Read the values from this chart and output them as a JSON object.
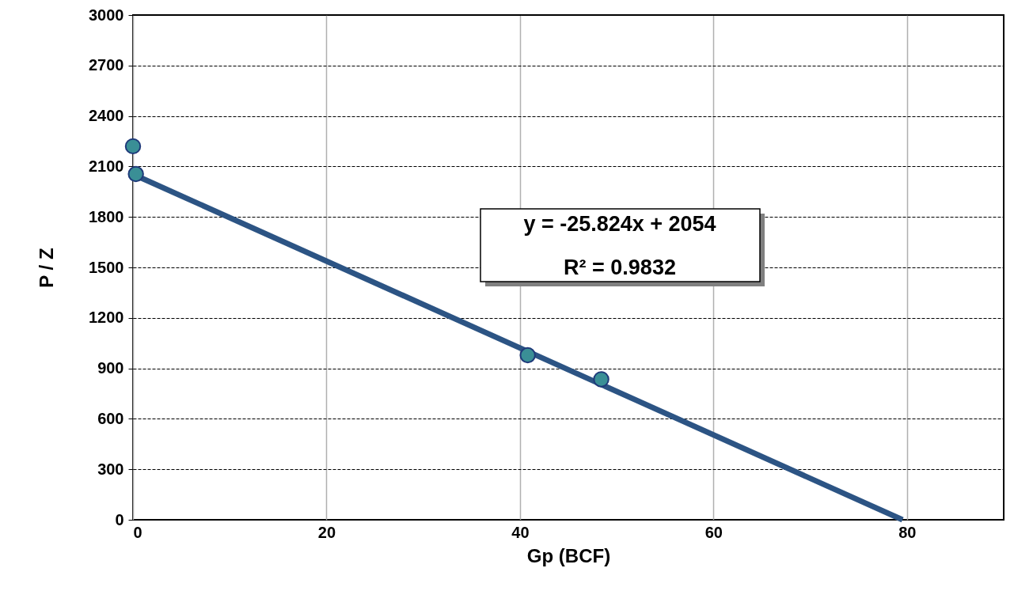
{
  "chart_data": {
    "type": "scatter",
    "xlabel": "Gp (BCF)",
    "ylabel": "P / Z",
    "xlim": [
      0,
      90
    ],
    "xticks": [
      0,
      20,
      40,
      60,
      80
    ],
    "ylim": [
      0,
      3000
    ],
    "yticks": [
      0,
      300,
      600,
      900,
      1200,
      1500,
      1800,
      2100,
      2400,
      2700,
      3000
    ],
    "grid": true,
    "marker": "circle",
    "series": [
      {
        "color": "#3a8f96",
        "x": [
          0,
          0.3,
          40.8,
          48.4
        ],
        "values": [
          2220,
          2055,
          978,
          835
        ]
      },
      {
        "type": "line",
        "marker": "none",
        "color": "#2c5484",
        "x": [
          0,
          79.54
        ],
        "values": [
          2054,
          0
        ]
      }
    ],
    "annotations": [
      "y = -25.824x + 2054",
      "R² = 0.9832"
    ]
  }
}
